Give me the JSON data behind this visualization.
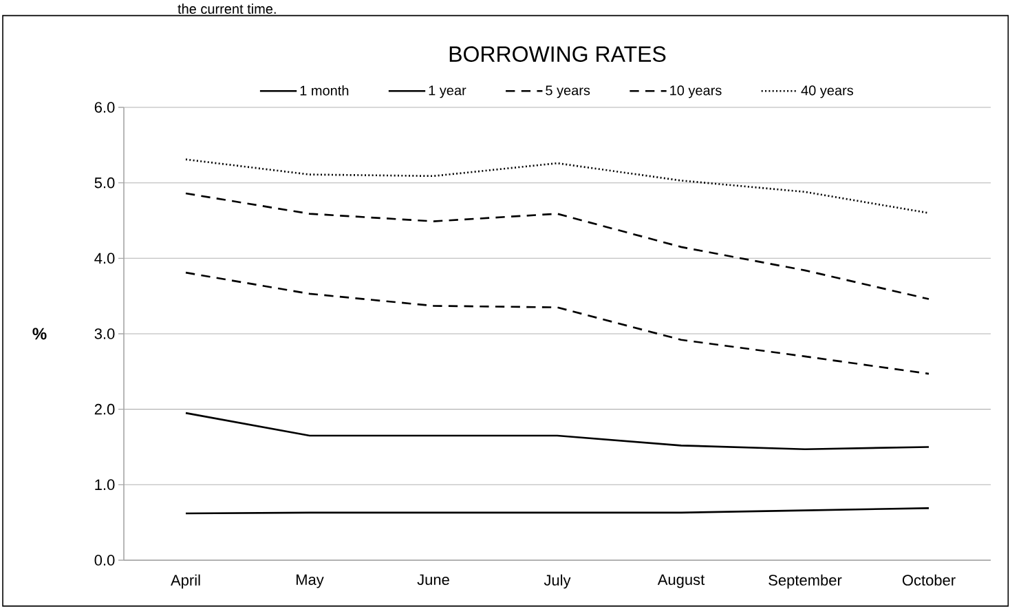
{
  "chart_data": {
    "type": "line",
    "title": "BORROWING RATES",
    "ylabel": "%",
    "annotations": [
      "the current time."
    ],
    "categories": [
      "April",
      "May",
      "June",
      "July",
      "August",
      "September",
      "October"
    ],
    "series": [
      {
        "name": "1 month",
        "color": "#000000",
        "line_style": "solid",
        "values": [
          0.62,
          0.63,
          0.63,
          0.63,
          0.63,
          0.66,
          0.69
        ]
      },
      {
        "name": "1 year",
        "color": "#000000",
        "line_style": "solid",
        "values": [
          1.95,
          1.65,
          1.65,
          1.65,
          1.52,
          1.47,
          1.5
        ]
      },
      {
        "name": "5 years",
        "color": "#000000",
        "line_style": "dashed",
        "values": [
          3.81,
          3.53,
          3.37,
          3.35,
          2.92,
          2.7,
          2.47
        ]
      },
      {
        "name": "10 years",
        "color": "#000000",
        "line_style": "dashed",
        "values": [
          4.86,
          4.59,
          4.49,
          4.59,
          4.15,
          3.84,
          3.46
        ]
      },
      {
        "name": "40 years",
        "color": "#000000",
        "line_style": "dotted",
        "values": [
          5.31,
          5.11,
          5.09,
          5.26,
          5.03,
          4.88,
          4.6
        ]
      }
    ],
    "ylim": [
      0,
      6
    ],
    "yticks": [
      {
        "value": 0,
        "label": "0.0"
      },
      {
        "value": 1,
        "label": "1.0"
      },
      {
        "value": 2,
        "label": "2.0"
      },
      {
        "value": 3,
        "label": "3.0"
      },
      {
        "value": 4,
        "label": "4.0"
      },
      {
        "value": 5,
        "label": "5.0"
      },
      {
        "value": 6,
        "label": "6.0"
      }
    ],
    "grid": "y",
    "legend": "top",
    "marker": "none"
  }
}
